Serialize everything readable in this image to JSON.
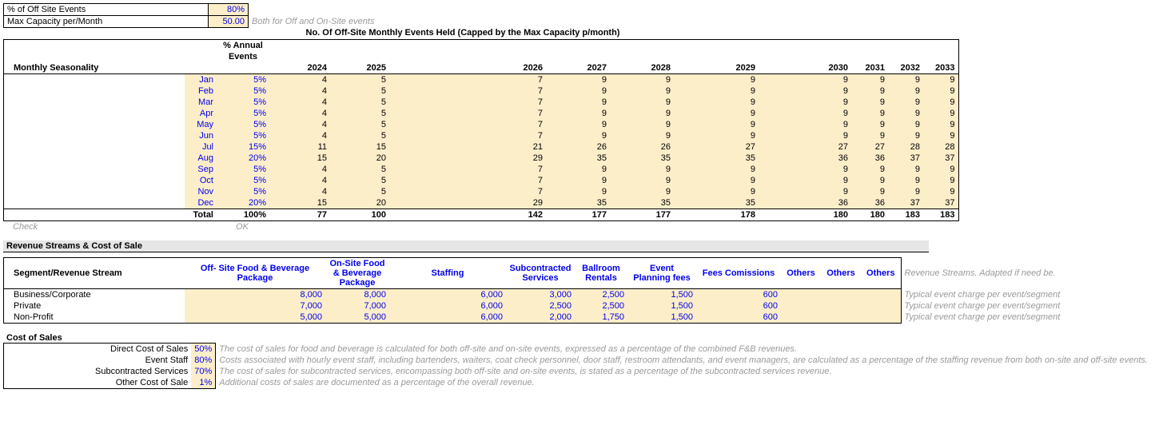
{
  "topInputs": {
    "offSiteLabel": "% of Off Site Events",
    "offSiteValue": "80%",
    "maxCapLabel": "Max Capacity per/Month",
    "maxCapValue": "50.00",
    "maxCapNote": "Both for Off and On-Site events"
  },
  "seasonality": {
    "title": "No. Of Off-Site Monthly Events Held (Capped by the Max Capacity p/month)",
    "pctHeader1": "% Annual",
    "pctHeader2": "Events",
    "rowHeader": "Monthly Seasonality",
    "years": [
      "2024",
      "2025",
      "2026",
      "2027",
      "2028",
      "2029",
      "2030",
      "2031",
      "2032",
      "2033"
    ],
    "rows": [
      {
        "m": "Jan",
        "p": "5%",
        "v": [
          "4",
          "5",
          "7",
          "9",
          "9",
          "9",
          "9",
          "9",
          "9",
          "9"
        ]
      },
      {
        "m": "Feb",
        "p": "5%",
        "v": [
          "4",
          "5",
          "7",
          "9",
          "9",
          "9",
          "9",
          "9",
          "9",
          "9"
        ]
      },
      {
        "m": "Mar",
        "p": "5%",
        "v": [
          "4",
          "5",
          "7",
          "9",
          "9",
          "9",
          "9",
          "9",
          "9",
          "9"
        ]
      },
      {
        "m": "Apr",
        "p": "5%",
        "v": [
          "4",
          "5",
          "7",
          "9",
          "9",
          "9",
          "9",
          "9",
          "9",
          "9"
        ]
      },
      {
        "m": "May",
        "p": "5%",
        "v": [
          "4",
          "5",
          "7",
          "9",
          "9",
          "9",
          "9",
          "9",
          "9",
          "9"
        ]
      },
      {
        "m": "Jun",
        "p": "5%",
        "v": [
          "4",
          "5",
          "7",
          "9",
          "9",
          "9",
          "9",
          "9",
          "9",
          "9"
        ]
      },
      {
        "m": "Jul",
        "p": "15%",
        "v": [
          "11",
          "15",
          "21",
          "26",
          "26",
          "27",
          "27",
          "27",
          "28",
          "28"
        ]
      },
      {
        "m": "Aug",
        "p": "20%",
        "v": [
          "15",
          "20",
          "29",
          "35",
          "35",
          "35",
          "36",
          "36",
          "37",
          "37"
        ]
      },
      {
        "m": "Sep",
        "p": "5%",
        "v": [
          "4",
          "5",
          "7",
          "9",
          "9",
          "9",
          "9",
          "9",
          "9",
          "9"
        ]
      },
      {
        "m": "Oct",
        "p": "5%",
        "v": [
          "4",
          "5",
          "7",
          "9",
          "9",
          "9",
          "9",
          "9",
          "9",
          "9"
        ]
      },
      {
        "m": "Nov",
        "p": "5%",
        "v": [
          "4",
          "5",
          "7",
          "9",
          "9",
          "9",
          "9",
          "9",
          "9",
          "9"
        ]
      },
      {
        "m": "Dec",
        "p": "20%",
        "v": [
          "15",
          "20",
          "29",
          "35",
          "35",
          "35",
          "36",
          "36",
          "37",
          "37"
        ]
      }
    ],
    "totalLabel": "Total",
    "totalPct": "100%",
    "totals": [
      "77",
      "100",
      "142",
      "177",
      "177",
      "178",
      "180",
      "180",
      "183",
      "183"
    ],
    "checkLabel": "Check",
    "checkValue": "OK"
  },
  "revenueSection": {
    "header": "Revenue Streams & Cost of Sale",
    "segHeader": "Segment/Revenue Stream",
    "cols": [
      "Off- Site Food & Beverage Package",
      "On-Site Food & Beverage Package",
      "Staffing",
      "Subcontracted Services",
      "Ballroom Rentals",
      "Event Planning fees",
      "Fees Comissions",
      "Others",
      "Others",
      "Others"
    ],
    "note": "Revenue Streams. Adapted if need be.",
    "rows": [
      {
        "seg": "Business/Corporate",
        "v": [
          "8,000",
          "8,000",
          "6,000",
          "3,000",
          "2,500",
          "1,500",
          "600",
          "",
          "",
          ""
        ],
        "note": "Typical event charge per event/segment"
      },
      {
        "seg": "Private",
        "v": [
          "7,000",
          "7,000",
          "6,000",
          "2,500",
          "2,500",
          "1,500",
          "600",
          "",
          "",
          ""
        ],
        "note": "Typical event charge per event/segment"
      },
      {
        "seg": "Non-Profit",
        "v": [
          "5,000",
          "5,000",
          "6,000",
          "2,000",
          "1,750",
          "1,500",
          "600",
          "",
          "",
          ""
        ],
        "note": "Typical event charge per event/segment"
      }
    ]
  },
  "cos": {
    "header": "Cost of Sales",
    "rows": [
      {
        "l": "Direct Cost of Sales",
        "v": "50%",
        "n": "The cost of sales for food and beverage is calculated for both off-site and on-site events, expressed as a percentage of the combined F&B revenues."
      },
      {
        "l": "Event Staff",
        "v": "80%",
        "n": "Costs associated with hourly event staff, including bartenders, waiters, coat check personnel, door staff, restroom attendants, and event managers, are calculated as a percentage of the staffing revenue from both on-site and off-site events."
      },
      {
        "l": "Subcontracted Services",
        "v": "70%",
        "n": "The cost of sales for subcontracted services, encompassing both off-site and on-site events, is stated as a percentage of the subcontracted services revenue."
      },
      {
        "l": "Other Cost of Sale",
        "v": "1%",
        "n": "Additional costs of sales are documented as a percentage of the overall revenue."
      }
    ]
  }
}
